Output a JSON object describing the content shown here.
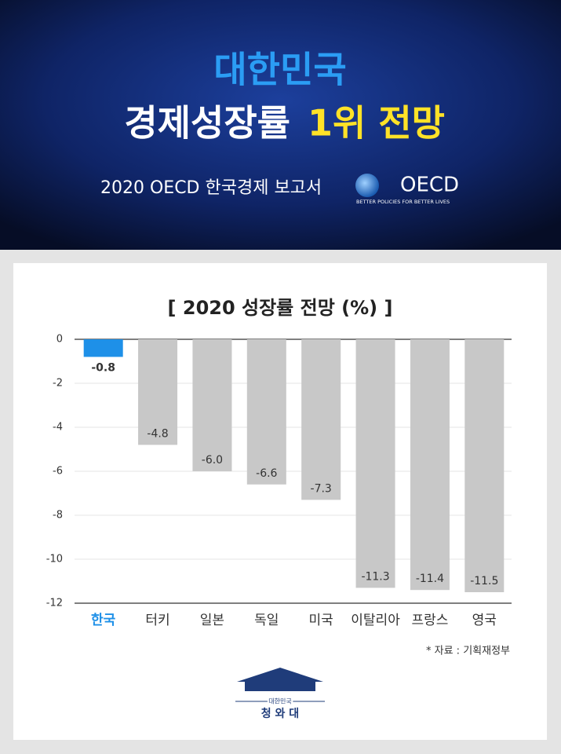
{
  "header": {
    "title_line1": "대한민국",
    "title_line2a": "경제성장률",
    "title_line2b": "1위 전망",
    "subtitle": "2020 OECD 한국경제 보고서",
    "logo_name": "OECD",
    "logo_tagline": "BETTER POLICIES FOR BETTER LIVES"
  },
  "chart_data": {
    "type": "bar",
    "title": "[ 2020 성장률 전망 (%) ]",
    "categories": [
      "한국",
      "터키",
      "일본",
      "독일",
      "미국",
      "이탈리아",
      "프랑스",
      "영국"
    ],
    "values": [
      -0.8,
      -4.8,
      -6.0,
      -6.6,
      -7.3,
      -11.3,
      -11.4,
      -11.5
    ],
    "value_labels": [
      "-0.8",
      "-4.8",
      "-6.0",
      "-6.6",
      "-7.3",
      "-11.3",
      "-11.4",
      "-11.5"
    ],
    "color": "#c8c8c8",
    "highlight_index": 0,
    "highlight_color": "#1e90e8",
    "ylim": [
      -12,
      0
    ],
    "yticks": [
      0,
      -2,
      -4,
      -6,
      -8,
      -10,
      -12
    ],
    "grid": true
  },
  "source": "* 자료 : 기획재정부",
  "footer_logo": {
    "small": "대한민국",
    "name": "청 와 대"
  }
}
